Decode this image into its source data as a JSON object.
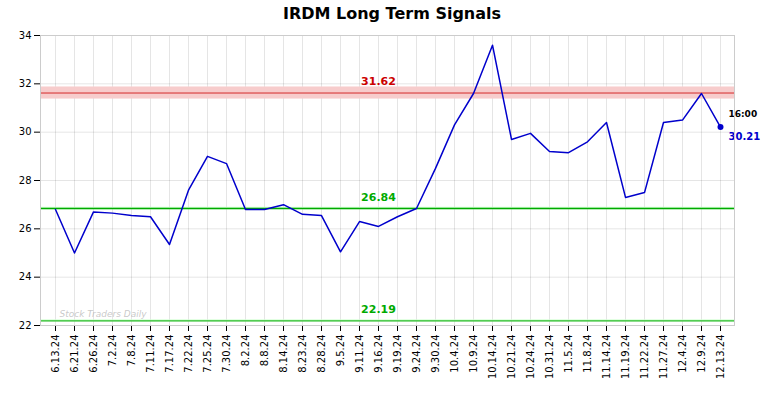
{
  "chart_data": {
    "type": "line",
    "title": "IRDM Long Term Signals",
    "categories": [
      "6.13.24",
      "6.21.24",
      "6.26.24",
      "7.2.24",
      "7.8.24",
      "7.11.24",
      "7.17.24",
      "7.22.24",
      "7.25.24",
      "7.30.24",
      "8.2.24",
      "8.8.24",
      "8.14.24",
      "8.23.24",
      "8.28.24",
      "9.5.24",
      "9.11.24",
      "9.16.24",
      "9.19.24",
      "9.24.24",
      "9.30.24",
      "10.4.24",
      "10.9.24",
      "10.14.24",
      "10.21.24",
      "10.24.24",
      "10.31.24",
      "11.5.24",
      "11.8.24",
      "11.14.24",
      "11.19.24",
      "11.22.24",
      "11.27.24",
      "12.4.24",
      "12.9.24",
      "12.13.24"
    ],
    "values": [
      26.8,
      25.0,
      26.7,
      26.65,
      26.55,
      26.5,
      25.35,
      27.6,
      29.0,
      28.7,
      26.8,
      26.8,
      27.0,
      26.6,
      26.55,
      25.05,
      26.3,
      26.1,
      26.5,
      26.84,
      28.5,
      30.3,
      31.6,
      33.6,
      29.7,
      29.95,
      29.2,
      29.15,
      29.6,
      30.4,
      27.3,
      27.5,
      30.4,
      30.5,
      31.6,
      30.21
    ],
    "color": "#0000cc",
    "ylim": [
      22,
      34
    ],
    "yticks": [
      22,
      24,
      26,
      28,
      30,
      32,
      34
    ],
    "grid": true,
    "reference_lines": [
      {
        "value": 31.62,
        "label": "31.62",
        "color": "#cc0000",
        "fill_color": "#f7cccc"
      },
      {
        "value": 26.84,
        "label": "26.84",
        "color": "#00aa00",
        "fill_color": "#ccffcc"
      },
      {
        "value": 22.19,
        "label": "22.19",
        "color": "#00aa00",
        "fill_color": "#ccffcc"
      }
    ],
    "last_point": {
      "time_label": "16:00",
      "value": 30.21,
      "label": "30.21",
      "color": "#0000cc"
    },
    "watermark": {
      "text": "Stock Traders Daily",
      "color": "#bbbbbb"
    }
  }
}
